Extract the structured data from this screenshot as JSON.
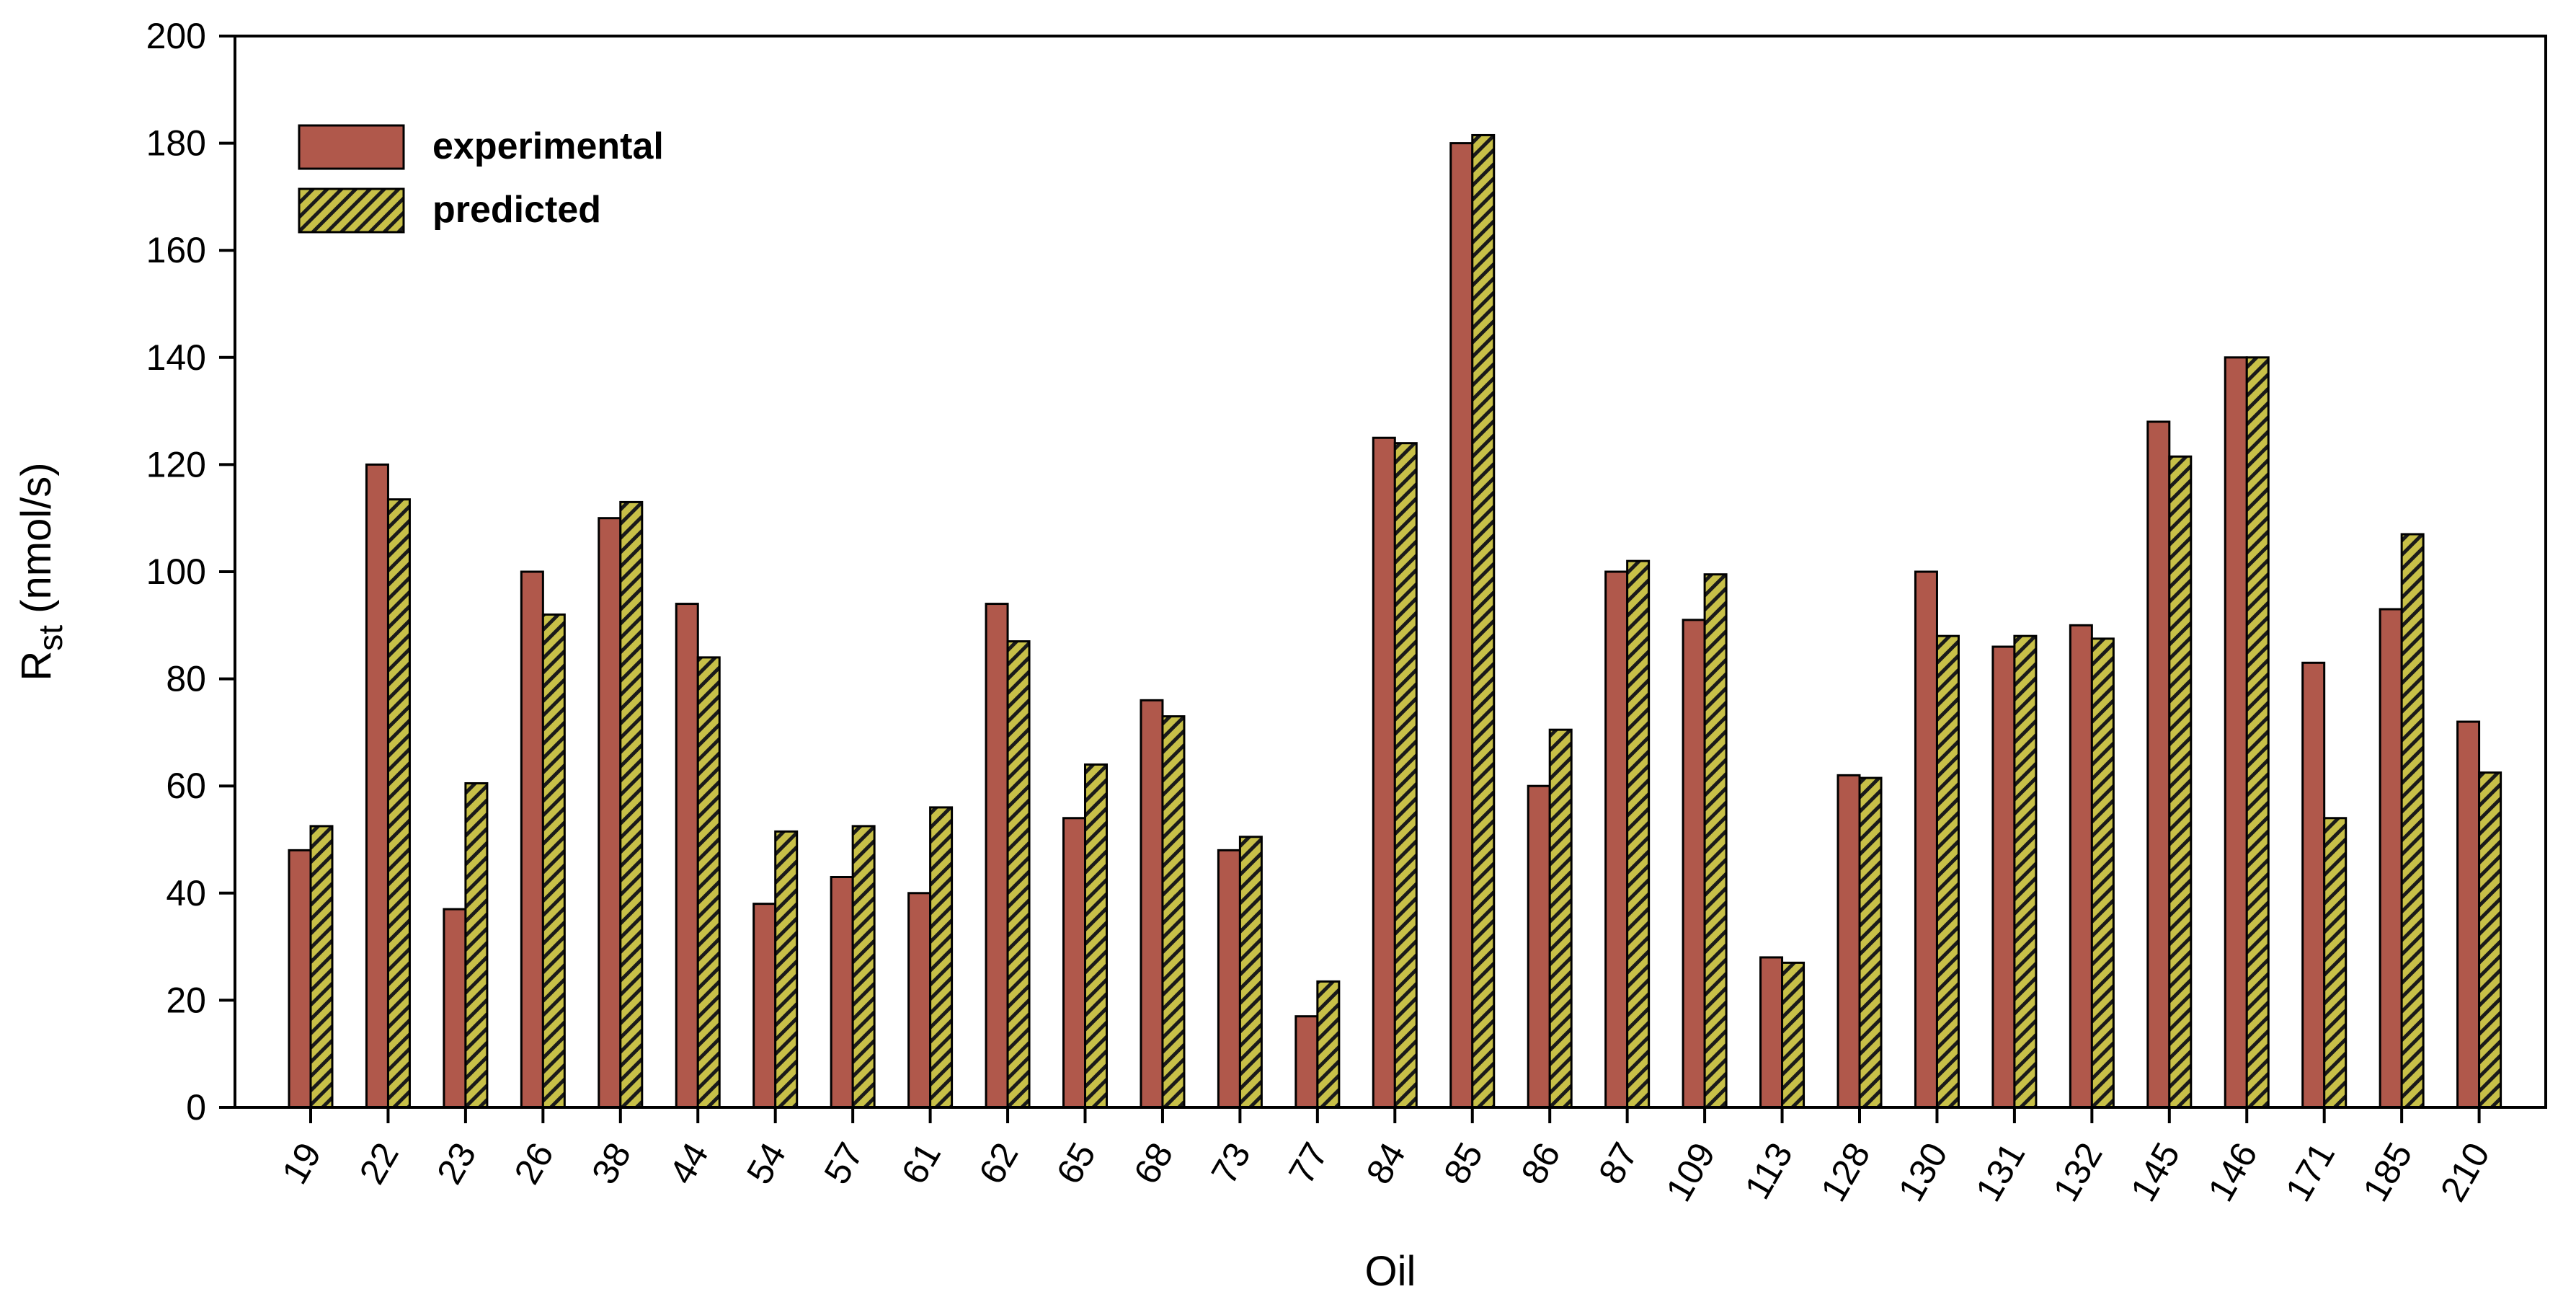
{
  "chart_data": {
    "type": "bar",
    "xlabel": "Oil",
    "ylabel": {
      "main": "R",
      "sub": "st",
      "unit": " (nmol/s)"
    },
    "ylim": [
      0,
      200
    ],
    "yticks": [
      0,
      20,
      40,
      60,
      80,
      100,
      120,
      140,
      160,
      180,
      200
    ],
    "legend_position": "top-left",
    "grid": false,
    "categories": [
      "19",
      "22",
      "23",
      "26",
      "38",
      "44",
      "54",
      "57",
      "61",
      "62",
      "65",
      "68",
      "73",
      "77",
      "84",
      "85",
      "86",
      "87",
      "109",
      "113",
      "128",
      "130",
      "131",
      "132",
      "145",
      "146",
      "171",
      "185",
      "210"
    ],
    "series": [
      {
        "name": "experimental",
        "color": "#b0584b",
        "pattern": "solid",
        "values": [
          48,
          120,
          37,
          100,
          110,
          94,
          38,
          43,
          40,
          94,
          54,
          76,
          48,
          17,
          125,
          180,
          60,
          100,
          91,
          28,
          62,
          100,
          86,
          90,
          128,
          140,
          83,
          93,
          72
        ]
      },
      {
        "name": "predicted",
        "color": "#c8c048",
        "pattern": "hatched",
        "values": [
          52.5,
          113.5,
          60.5,
          92,
          113,
          84,
          51.5,
          52.5,
          56,
          87,
          64,
          73,
          50.5,
          23.5,
          124,
          181.5,
          70.5,
          102,
          99.5,
          27,
          61.5,
          88,
          88,
          87.5,
          121.5,
          140,
          54,
          107,
          62.5
        ]
      }
    ]
  }
}
